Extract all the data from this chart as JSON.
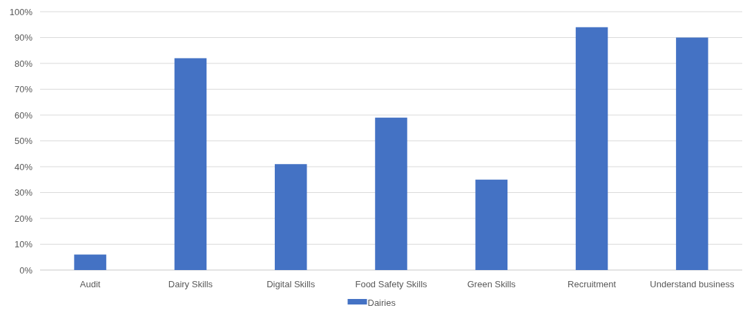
{
  "chart_data": {
    "type": "bar",
    "categories": [
      "Audit",
      "Dairy Skills",
      "Digital Skills",
      "Food Safety Skills",
      "Green Skills",
      "Recruitment",
      "Understand business"
    ],
    "series": [
      {
        "name": "Dairies",
        "color": "#4472c4",
        "values": [
          6,
          82,
          41,
          59,
          35,
          94,
          90
        ]
      }
    ],
    "ylim": [
      0,
      100
    ],
    "yticks": [
      {
        "value": 0,
        "label": "0%"
      },
      {
        "value": 10,
        "label": "10%"
      },
      {
        "value": 20,
        "label": "20%"
      },
      {
        "value": 30,
        "label": "30%"
      },
      {
        "value": 40,
        "label": "40%"
      },
      {
        "value": 50,
        "label": "50%"
      },
      {
        "value": 60,
        "label": "60%"
      },
      {
        "value": 70,
        "label": "70%"
      },
      {
        "value": 80,
        "label": "80%"
      },
      {
        "value": 90,
        "label": "90%"
      },
      {
        "value": 100,
        "label": "100%"
      }
    ],
    "grid": "y",
    "legend": "bottom"
  }
}
